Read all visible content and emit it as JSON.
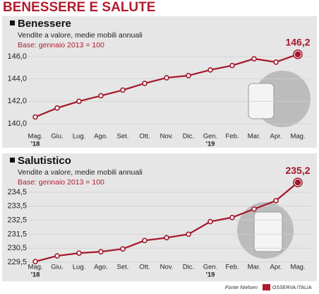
{
  "title": "BENESSERE E SALUTE",
  "source": "Fonte Nielsen",
  "logo": "OSSERVA ITALIA",
  "chart_data": [
    {
      "type": "line",
      "title": "Benessere",
      "subtitle": "Vendite a valore, medie mobili annuali",
      "note": "Base: gennaio 2013 = 100",
      "categories": [
        "Mag.",
        "Giu.",
        "Lug.",
        "Ago.",
        "Set.",
        "Ott.",
        "Nov.",
        "Dic.",
        "Gen.",
        "Feb.",
        "Mar.",
        "Apr.",
        "Mag."
      ],
      "year_labels": [
        "'18",
        null,
        null,
        null,
        null,
        null,
        null,
        null,
        "'19",
        null,
        null,
        null,
        null
      ],
      "values": [
        140.6,
        141.4,
        142.0,
        142.5,
        143.0,
        143.6,
        144.1,
        144.3,
        144.8,
        145.2,
        145.8,
        145.5,
        146.2
      ],
      "value_labels": [
        null,
        null,
        null,
        null,
        null,
        null,
        null,
        null,
        null,
        null,
        null,
        null,
        "146,2"
      ],
      "color": "#a3172b",
      "ylim": [
        139.4,
        146.8
      ],
      "yticks": [
        {
          "value": 140,
          "label": "140,0"
        },
        {
          "value": 142,
          "label": "142,0"
        },
        {
          "value": 144,
          "label": "144,0"
        },
        {
          "value": 146,
          "label": "146,0"
        }
      ],
      "grid": true
    },
    {
      "type": "line",
      "title": "Salutistico",
      "subtitle": "Vendite a valore, medie mobili annuali",
      "note": "Base: gennaio 2013 = 100",
      "categories": [
        "Mag.",
        "Giu.",
        "Lug.",
        "Ago.",
        "Set.",
        "Ott.",
        "Nov.",
        "Dic.",
        "Gen.",
        "Feb.",
        "Mar.",
        "Apr.",
        "Mag."
      ],
      "year_labels": [
        "'18",
        null,
        null,
        null,
        null,
        null,
        null,
        null,
        "'19",
        null,
        null,
        null,
        null
      ],
      "values": [
        229.55,
        229.95,
        230.15,
        230.25,
        230.45,
        231.05,
        231.25,
        231.5,
        232.4,
        232.7,
        233.3,
        233.9,
        235.2
      ],
      "value_labels": [
        null,
        null,
        null,
        null,
        null,
        null,
        null,
        null,
        null,
        null,
        null,
        null,
        "235,2"
      ],
      "color": "#a3172b",
      "ylim": [
        229.0,
        235.5
      ],
      "yticks": [
        {
          "value": 229.5,
          "label": "229,5"
        },
        {
          "value": 230.5,
          "label": "230,5"
        },
        {
          "value": 231.5,
          "label": "231,5"
        },
        {
          "value": 232.5,
          "label": "232,5"
        },
        {
          "value": 233.5,
          "label": "233,5"
        },
        {
          "value": 234.5,
          "label": "234,5"
        }
      ],
      "grid": true
    }
  ]
}
